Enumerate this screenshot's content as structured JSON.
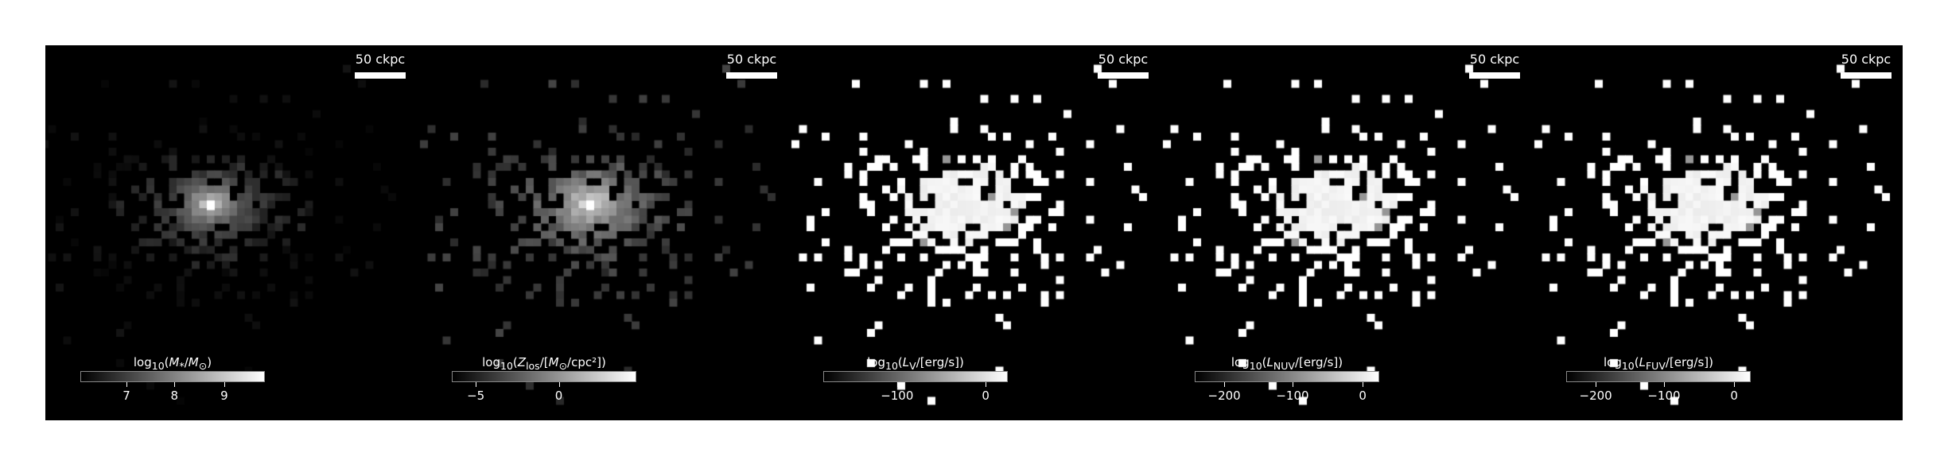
{
  "panels": [
    {
      "id": "mass",
      "scale_label": "50 ckpc",
      "cbar": {
        "pre": "log",
        "sub10": "10",
        "open": "(",
        "var": "M",
        "varsub": "*",
        "slash": "/",
        "unit": "M",
        "unitsub": "⊙",
        "close": ")"
      },
      "ticks": [
        {
          "label": "7",
          "frac": 0.25
        },
        {
          "label": "8",
          "frac": 0.51
        },
        {
          "label": "9",
          "frac": 0.78
        }
      ],
      "style": "mass"
    },
    {
      "id": "metallicity",
      "scale_label": "50 ckpc",
      "cbar": {
        "pre": "log",
        "sub10": "10",
        "open": "(",
        "var": "Z",
        "varsub": "los",
        "slash": "/[",
        "unit": "M",
        "unitsub": "⊙",
        "close": "/cpc²])"
      },
      "ticks": [
        {
          "label": "−5",
          "frac": 0.13
        },
        {
          "label": "0",
          "frac": 0.58
        }
      ],
      "style": "metal"
    },
    {
      "id": "lum-v",
      "scale_label": "50 ckpc",
      "cbar": {
        "pre": "log",
        "sub10": "10",
        "open": "(",
        "var": "L",
        "varsub": "V",
        "slash": "/[erg/s])",
        "unit": "",
        "unitsub": "",
        "close": ""
      },
      "ticks": [
        {
          "label": "−100",
          "frac": 0.4
        },
        {
          "label": "0",
          "frac": 0.88
        }
      ],
      "style": "lum"
    },
    {
      "id": "lum-nuv",
      "scale_label": "50 ckpc",
      "cbar": {
        "pre": "log",
        "sub10": "10",
        "open": "(",
        "var": "L",
        "varsub": "NUV",
        "slash": "/[erg/s])",
        "unit": "",
        "unitsub": "",
        "close": ""
      },
      "ticks": [
        {
          "label": "−200",
          "frac": 0.16
        },
        {
          "label": "−100",
          "frac": 0.53
        },
        {
          "label": "0",
          "frac": 0.91
        }
      ],
      "style": "lum"
    },
    {
      "id": "lum-fuv",
      "scale_label": "50 ckpc",
      "cbar": {
        "pre": "log",
        "sub10": "10",
        "open": "(",
        "var": "L",
        "varsub": "FUV",
        "slash": "/[erg/s])",
        "unit": "",
        "unitsub": "",
        "close": ""
      },
      "ticks": [
        {
          "label": "−200",
          "frac": 0.16
        },
        {
          "label": "−100",
          "frac": 0.53
        },
        {
          "label": "0",
          "frac": 0.91
        }
      ],
      "style": "lum"
    }
  ]
}
